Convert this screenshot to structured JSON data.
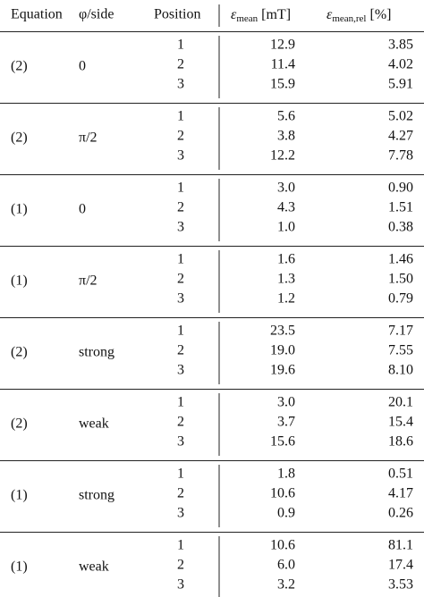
{
  "table": {
    "header": [
      {
        "text": "Equation"
      },
      {
        "text": "φ/side"
      },
      {
        "text": "Position"
      },
      {
        "symbol": "ε",
        "sub": "mean",
        "unit": "[mT]"
      },
      {
        "symbol": "ε",
        "sub": "mean,rel",
        "unit": "[%]"
      }
    ],
    "groups": [
      {
        "equation": "(2)",
        "side": "0",
        "rows": [
          [
            "1",
            "12.9",
            "3.85"
          ],
          [
            "2",
            "11.4",
            "4.02"
          ],
          [
            "3",
            "15.9",
            "5.91"
          ]
        ]
      },
      {
        "equation": "(2)",
        "side": "π/2",
        "rows": [
          [
            "1",
            "5.6",
            "5.02"
          ],
          [
            "2",
            "3.8",
            "4.27"
          ],
          [
            "3",
            "12.2",
            "7.78"
          ]
        ]
      },
      {
        "equation": "(1)",
        "side": "0",
        "rows": [
          [
            "1",
            "3.0",
            "0.90"
          ],
          [
            "2",
            "4.3",
            "1.51"
          ],
          [
            "3",
            "1.0",
            "0.38"
          ]
        ]
      },
      {
        "equation": "(1)",
        "side": "π/2",
        "rows": [
          [
            "1",
            "1.6",
            "1.46"
          ],
          [
            "2",
            "1.3",
            "1.50"
          ],
          [
            "3",
            "1.2",
            "0.79"
          ]
        ]
      },
      {
        "equation": "(2)",
        "side": "strong",
        "rows": [
          [
            "1",
            "23.5",
            "7.17"
          ],
          [
            "2",
            "19.0",
            "7.55"
          ],
          [
            "3",
            "19.6",
            "8.10"
          ]
        ]
      },
      {
        "equation": "(2)",
        "side": "weak",
        "rows": [
          [
            "1",
            "3.0",
            "20.1"
          ],
          [
            "2",
            "3.7",
            "15.4"
          ],
          [
            "3",
            "15.6",
            "18.6"
          ]
        ]
      },
      {
        "equation": "(1)",
        "side": "strong",
        "rows": [
          [
            "1",
            "1.8",
            "0.51"
          ],
          [
            "2",
            "10.6",
            "4.17"
          ],
          [
            "3",
            "0.9",
            "0.26"
          ]
        ]
      },
      {
        "equation": "(1)",
        "side": "weak",
        "rows": [
          [
            "1",
            "10.6",
            "81.1"
          ],
          [
            "2",
            "6.0",
            "17.4"
          ],
          [
            "3",
            "3.2",
            "3.53"
          ]
        ]
      }
    ]
  }
}
